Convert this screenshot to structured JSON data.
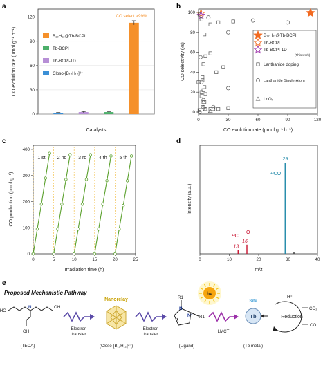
{
  "panels": {
    "a": "a",
    "b": "b",
    "c": "c",
    "d": "d",
    "e": "e"
  },
  "chart_data": [
    {
      "panel": "a",
      "type": "bar",
      "categories": [
        "Closo-[B12H12]2-",
        "Tb-BCPI-1D",
        "Tb-BCPI",
        "B12H12@Tb-BCPI"
      ],
      "values": [
        1.5,
        2.5,
        2.5,
        113
      ],
      "errors": [
        0.5,
        0.6,
        0.6,
        2.5
      ],
      "colors": [
        "#3b8fd6",
        "#b78fd6",
        "#4caf6a",
        "#f5902a"
      ],
      "xlabel": "Catalysts",
      "ylabel": "CO evolution rate (μmol g⁻¹ h⁻¹)",
      "ylim": [
        0,
        130
      ],
      "yticks": [
        0,
        30,
        60,
        90,
        120
      ],
      "legend": [
        "B12H12@Tb-BCPI",
        "Tb-BCPI",
        "Tb-BCPI-1D",
        "Closo-[B12H12]2-"
      ],
      "annotation": "CO select >99%",
      "grid": "horizontal"
    },
    {
      "panel": "b",
      "type": "scatter",
      "xlabel": "CO evolution rate (μmol g⁻¹ h⁻¹)",
      "ylabel": "CO selectivity (%)",
      "xlim": [
        0,
        120
      ],
      "ylim": [
        0,
        100
      ],
      "xticks": [
        0,
        30,
        60,
        90,
        120
      ],
      "yticks": [
        0,
        20,
        40,
        60,
        80,
        100
      ],
      "series": [
        {
          "name": "B12H12@Tb-BCPI",
          "marker": "star-filled",
          "color": "#f26a21",
          "points": [
            [
              113,
              99.5
            ]
          ]
        },
        {
          "name": "Tb-BCPI",
          "marker": "star-open",
          "color": "#f26a21",
          "points": [
            [
              2.5,
              99
            ]
          ]
        },
        {
          "name": "Tb-BCPI-1D",
          "marker": "star-open",
          "color": "#9b2fa8",
          "points": [
            [
              2.5,
              97
            ]
          ]
        },
        {
          "name": "Lanthanide doping",
          "marker": "square",
          "color": "#555",
          "points": [
            [
              1,
              98
            ],
            [
              3,
              93
            ],
            [
              6,
              78
            ],
            [
              7,
              56
            ],
            [
              12,
              88
            ],
            [
              12,
              59
            ],
            [
              20,
              90
            ],
            [
              18,
              40
            ],
            [
              25,
              45
            ],
            [
              30,
              4
            ],
            [
              35,
              91
            ],
            [
              5,
              48
            ],
            [
              4,
              35
            ],
            [
              4,
              32
            ],
            [
              6,
              25
            ],
            [
              5,
              22
            ],
            [
              7,
              18
            ],
            [
              3,
              20
            ],
            [
              3,
              16
            ],
            [
              5,
              10
            ],
            [
              6,
              10
            ],
            [
              4,
              5
            ],
            [
              12,
              3
            ],
            [
              15,
              3
            ],
            [
              7,
              3
            ],
            [
              1,
              2
            ],
            [
              0,
              30
            ],
            [
              20,
              3
            ]
          ]
        },
        {
          "name": "Lanthanide Single-Atom",
          "marker": "circle",
          "color": "#555",
          "points": [
            [
              10,
              95
            ],
            [
              30,
              80
            ],
            [
              55,
              92
            ],
            [
              90,
              90
            ],
            [
              30,
              24
            ],
            [
              2,
              55
            ],
            [
              3,
              30
            ],
            [
              5,
              5
            ],
            [
              15,
              5
            ],
            [
              1,
              0
            ],
            [
              5,
              12
            ]
          ]
        },
        {
          "name": "LnOx",
          "marker": "triangle",
          "color": "#555",
          "points": [
            [
              7,
              3
            ],
            [
              12,
              1
            ]
          ]
        }
      ],
      "legend_note": "(This work)"
    },
    {
      "panel": "c",
      "type": "line",
      "xlabel": "Irradiation time (h)",
      "ylabel": "CO production (μmol g⁻¹)",
      "xlim": [
        0,
        25
      ],
      "ylim": [
        0,
        400
      ],
      "xticks": [
        0,
        5,
        10,
        15,
        20,
        25
      ],
      "yticks": [
        0,
        100,
        200,
        300,
        400
      ],
      "cycles": [
        {
          "label": "1 st",
          "t": [
            0,
            1,
            2,
            3,
            4
          ],
          "y": [
            0,
            95,
            190,
            290,
            385
          ]
        },
        {
          "label": "2 nd",
          "t": [
            5,
            6,
            7,
            8,
            9
          ],
          "y": [
            0,
            95,
            190,
            285,
            380
          ]
        },
        {
          "label": "3 rd",
          "t": [
            10,
            11,
            12,
            13,
            14
          ],
          "y": [
            0,
            95,
            190,
            285,
            380
          ]
        },
        {
          "label": "4 th",
          "t": [
            15,
            16,
            17,
            18,
            19
          ],
          "y": [
            0,
            95,
            190,
            280,
            375
          ]
        },
        {
          "label": "5 th",
          "t": [
            20,
            21,
            22,
            23,
            24
          ],
          "y": [
            0,
            95,
            185,
            280,
            375
          ]
        }
      ],
      "color": "#5aa02c",
      "separator_color": "#f2c14e"
    },
    {
      "panel": "d",
      "type": "bar",
      "xlabel": "m/z",
      "ylabel": "Intensity (a.u.)",
      "xlim": [
        0,
        40
      ],
      "xticks": [
        0,
        10,
        20,
        30,
        40
      ],
      "peaks": [
        {
          "mz": 13,
          "intensity": 0.04,
          "color": "#c8102e",
          "label": "13"
        },
        {
          "mz": 16,
          "intensity": 0.1,
          "color": "#c8102e",
          "label": "16"
        },
        {
          "mz": 29,
          "intensity": 1.0,
          "color": "#1e88a8",
          "label": "29"
        },
        {
          "mz": 32,
          "intensity": 0.02,
          "color": "#333",
          "label": ""
        }
      ],
      "annotations": [
        {
          "text": "¹³CO",
          "color": "#1e88a8"
        },
        {
          "text": "¹³C",
          "color": "#c8102e"
        },
        {
          "text": "O",
          "color": "#c8102e"
        }
      ]
    }
  ],
  "legend_a": {
    "items": [
      {
        "label": "B₁₂H₁₂@Tb-BCPI",
        "color": "#f5902a"
      },
      {
        "label": "Tb-BCPI",
        "color": "#4caf6a"
      },
      {
        "label": "Tb-BCPI-1D",
        "color": "#b78fd6"
      },
      {
        "label": "Closo-[B₁₂H₁₂]²⁻",
        "color": "#3b8fd6"
      }
    ]
  },
  "legend_b": {
    "items": [
      {
        "label": "B₁₂H₁₂@Tb-BCPI"
      },
      {
        "label": "Tb-BCPI"
      },
      {
        "label": "Tb-BCPI-1D"
      },
      {
        "label": "Lanthanide doping"
      },
      {
        "label": "Lanthanide Single-Atom"
      },
      {
        "label": "LnOₓ"
      }
    ],
    "note": "(This work)"
  },
  "scheme": {
    "title": "Proposed Mechanistic Pathway",
    "teoa": "(TEOA)",
    "nanorelay": "Nanorelay",
    "closo": "(Closo-[B₁₂H₁₂]²⁻)",
    "ligand": "(Ligand)",
    "tbmetal": "(Tb metal)",
    "electron_transfer": "Electron transfer",
    "lmct": "LMCT",
    "hv": "hν",
    "site": "Site",
    "tb": "Tb",
    "reduction": "Reduction",
    "hplus": "H⁺",
    "co2": "CO₂",
    "co": "CO",
    "r1": "R1",
    "r1b": "R1"
  }
}
